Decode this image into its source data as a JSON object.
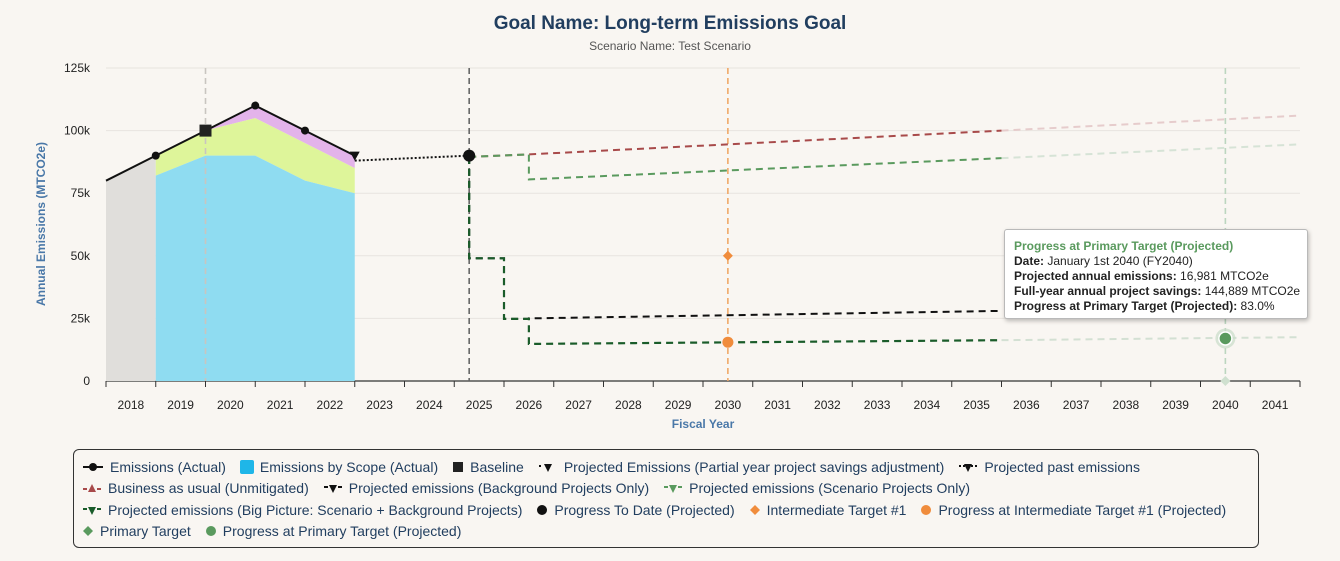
{
  "title": "Goal Name: Long-term Emissions Goal",
  "subtitle": "Scenario Name: Test Scenario",
  "tooltip": {
    "title": "Progress at Primary Target (Projected)",
    "date_label": "Date:",
    "date_value": " January 1st 2040 (FY2040)",
    "proj_label": "Projected annual emissions:",
    "proj_value": " 16,981 MTCO2e",
    "savings_label": "Full-year annual project savings:",
    "savings_value": " 144,889 MTCO2e",
    "progress_label": "Progress at Primary Target (Projected):",
    "progress_value": " 83.0%"
  },
  "colors": {
    "actual": "#111111",
    "scope1": "#8fdcf1",
    "scope2": "#def59a",
    "scope3": "#e3b3ea",
    "baseline_area": "#e0dedb",
    "bau": "#a84a4a",
    "scenario": "#5a9a5e",
    "bigpicture": "#1a5c2a",
    "background": "#111111",
    "intermediate": "#f08c3c",
    "primary": "#5a9a5e",
    "grid": "#e8e4df"
  },
  "chart_data": {
    "type": "line",
    "xlabel": "Fiscal Year",
    "ylabel": "Annual Emissions (MTCO2e)",
    "ylim": [
      0,
      125000
    ],
    "yticks": [
      0,
      25000,
      50000,
      75000,
      100000,
      125000
    ],
    "ytick_labels": [
      "0",
      "25k",
      "50k",
      "75k",
      "100k",
      "125k"
    ],
    "x_categories": [
      "2018",
      "2019",
      "2020",
      "2021",
      "2022",
      "2023",
      "2024",
      "2025",
      "2026",
      "2027",
      "2028",
      "2029",
      "2030",
      "2031",
      "2032",
      "2033",
      "2034",
      "2035",
      "2036",
      "2037",
      "2038",
      "2039",
      "2040",
      "2041"
    ],
    "series": [
      {
        "name": "Emissions (Actual)",
        "x": [
          2017.5,
          2018.5,
          2019.5,
          2020.5,
          2021.5,
          2022.5
        ],
        "y": [
          80000,
          90000,
          100000,
          110000,
          100000,
          90000
        ]
      },
      {
        "name": "Emissions by Scope (Actual)",
        "x": [
          2018.5,
          2019.5,
          2020.5,
          2021.5,
          2022.5
        ],
        "scope1": [
          82000,
          90000,
          90000,
          80000,
          75000
        ],
        "scope2": [
          90000,
          100000,
          105000,
          95000,
          85000
        ],
        "scope3": [
          90000,
          100000,
          110000,
          100000,
          90000
        ]
      },
      {
        "name": "Baseline",
        "x": [
          2019.5
        ],
        "y": [
          100000
        ]
      },
      {
        "name": "Projected past emissions",
        "x": [
          2022.5,
          2024.8
        ],
        "y": [
          88000,
          90000
        ]
      },
      {
        "name": "Business as usual (Unmitigated)",
        "x": [
          2024.8,
          2026.0,
          2035.5,
          2041.5
        ],
        "y": [
          89500,
          90500,
          100000,
          106000
        ]
      },
      {
        "name": "Projected emissions (Scenario Projects Only)",
        "x": [
          2024.8,
          2026.0,
          2026.0,
          2035.5,
          2041.5
        ],
        "y": [
          89500,
          90500,
          80500,
          89000,
          94500
        ]
      },
      {
        "name": "Projected emissions (Background Projects Only)",
        "x": [
          2024.8,
          2024.8,
          2025.5,
          2025.5,
          2026.0,
          2026.0,
          2035.5
        ],
        "y": [
          89500,
          49000,
          49000,
          24800,
          24800,
          25000,
          28000
        ]
      },
      {
        "name": "Projected emissions (Big Picture: Scenario + Background Projects)",
        "x": [
          2024.8,
          2024.8,
          2025.5,
          2025.5,
          2026.0,
          2026.0,
          2035.5,
          2041.5
        ],
        "y": [
          89500,
          49000,
          49000,
          24800,
          24800,
          14800,
          16300,
          17500
        ]
      },
      {
        "name": "Progress To Date (Projected)",
        "x": [
          2024.8
        ],
        "y": [
          90000
        ]
      },
      {
        "name": "Intermediate Target #1",
        "x": [
          2030
        ],
        "y": [
          50000
        ]
      },
      {
        "name": "Progress at Intermediate Target #1 (Projected)",
        "x": [
          2030
        ],
        "y": [
          15500
        ]
      },
      {
        "name": "Primary Target",
        "x": [
          2040
        ],
        "y": [
          0
        ]
      },
      {
        "name": "Progress at Primary Target (Projected)",
        "x": [
          2040
        ],
        "y": [
          16981
        ]
      }
    ],
    "vertical_markers": [
      2019.5,
      2024.8,
      2030,
      2040
    ],
    "grid": true,
    "legend_position": "bottom"
  },
  "legend": [
    [
      "Emissions (Actual)",
      "Emissions by Scope (Actual)",
      "Baseline",
      "Projected Emissions (Partial year project savings adjustment)",
      "Projected past emissions"
    ],
    [
      "Business as usual (Unmitigated)",
      "Projected emissions (Background Projects Only)",
      "Projected emissions (Scenario Projects Only)"
    ],
    [
      "Projected emissions (Big Picture: Scenario + Background Projects)",
      "Progress To Date (Projected)",
      "Intermediate Target #1",
      "Progress at Intermediate Target #1 (Projected)"
    ],
    [
      "Primary Target",
      "Progress at Primary Target (Projected)"
    ]
  ]
}
